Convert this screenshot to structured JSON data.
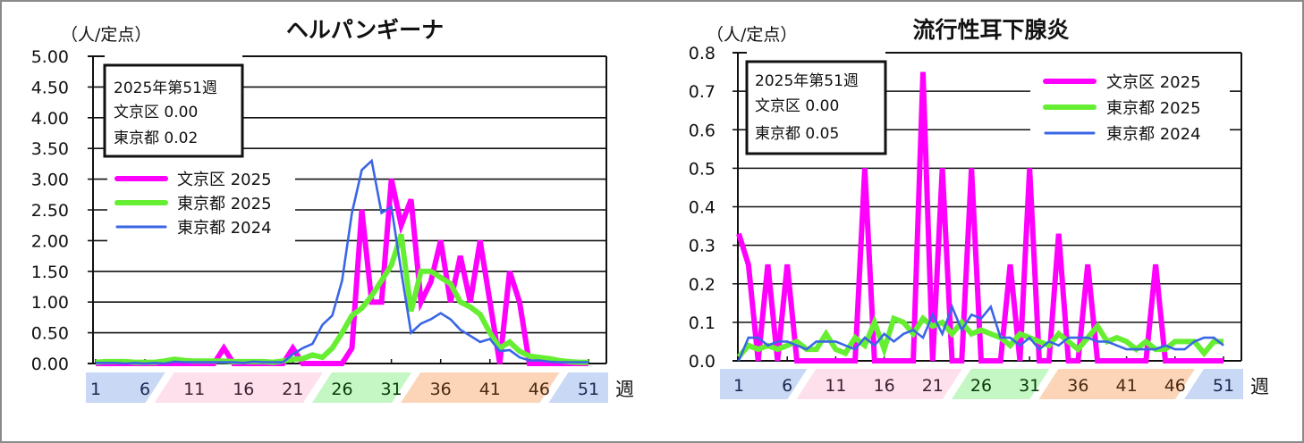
{
  "common": {
    "unit_label": "（人/定点）",
    "week_suffix": "週",
    "x_tick_labels": [
      "1",
      "6",
      "11",
      "16",
      "21",
      "26",
      "31",
      "36",
      "41",
      "46",
      "51"
    ],
    "season_bands": [
      {
        "name": "winter-start",
        "from": 1,
        "to": 7,
        "color": "#c9d8f5",
        "text": "#1a2850"
      },
      {
        "name": "spring",
        "from": 8,
        "to": 23,
        "color": "#fde0ec",
        "text": "#3a2030"
      },
      {
        "name": "summer",
        "from": 24,
        "to": 32,
        "color": "#c4f7c4",
        "text": "#0a3a0a"
      },
      {
        "name": "autumn",
        "from": 33,
        "to": 47,
        "color": "#fcd5b8",
        "text": "#4a2a10"
      },
      {
        "name": "winter-end",
        "from": 48,
        "to": 52,
        "color": "#c9d8f5",
        "text": "#1a2850"
      }
    ],
    "colors": {
      "bunkyo_2025": "#ff00ff",
      "tokyo_2025": "#66ee33",
      "tokyo_2024": "#3a66e6"
    }
  },
  "chart_data": [
    {
      "type": "line",
      "title": "ヘルパンギーナ",
      "ylabel": "（人/定点）",
      "xlabel": "週",
      "ylim": [
        0,
        5
      ],
      "y_ticks": [
        "0.00",
        "0.50",
        "1.00",
        "1.50",
        "2.00",
        "2.50",
        "3.00",
        "3.50",
        "4.00",
        "4.50",
        "5.00"
      ],
      "x_ticks": [
        "1",
        "6",
        "11",
        "16",
        "21",
        "26",
        "31",
        "36",
        "41",
        "46",
        "51"
      ],
      "grid": true,
      "legend_position": "upper-left",
      "info_box": [
        "2025年第51週",
        "文京区  0.00",
        "東京都  0.02"
      ],
      "x": [
        1,
        2,
        3,
        4,
        5,
        6,
        7,
        8,
        9,
        10,
        11,
        12,
        13,
        14,
        15,
        16,
        17,
        18,
        19,
        20,
        21,
        22,
        23,
        24,
        25,
        26,
        27,
        28,
        29,
        30,
        31,
        32,
        33,
        34,
        35,
        36,
        37,
        38,
        39,
        40,
        41,
        42,
        43,
        44,
        45,
        46,
        47,
        48,
        49,
        50,
        51
      ],
      "series": [
        {
          "name": "文京区 2025",
          "values": [
            0,
            0,
            0,
            0,
            0,
            0,
            0,
            0,
            0,
            0,
            0,
            0,
            0,
            0.25,
            0,
            0,
            0,
            0,
            0,
            0,
            0.25,
            0,
            0,
            0,
            0,
            0,
            0.25,
            2.5,
            1.0,
            1.0,
            3.0,
            2.25,
            2.67,
            1.0,
            1.33,
            2.0,
            1.0,
            1.75,
            1.0,
            2.0,
            1.0,
            0,
            1.5,
            1.0,
            0,
            0,
            0,
            0,
            0,
            0,
            0
          ]
        },
        {
          "name": "東京都 2025",
          "values": [
            0.02,
            0.03,
            0.03,
            0.03,
            0.02,
            0.02,
            0.02,
            0.04,
            0.07,
            0.05,
            0.04,
            0.04,
            0.04,
            0.04,
            0.03,
            0.03,
            0.03,
            0.03,
            0.02,
            0.04,
            0.07,
            0.08,
            0.14,
            0.1,
            0.25,
            0.5,
            0.78,
            0.9,
            1.1,
            1.35,
            1.6,
            2.1,
            0.85,
            1.5,
            1.5,
            1.4,
            1.3,
            1.0,
            0.92,
            0.8,
            0.5,
            0.25,
            0.35,
            0.2,
            0.12,
            0.1,
            0.08,
            0.05,
            0.03,
            0.02,
            0.02
          ]
        },
        {
          "name": "東京都 2024",
          "values": [
            0.01,
            0.01,
            0.01,
            0.0,
            0.01,
            0.0,
            0.01,
            0.0,
            0.03,
            0.02,
            0.02,
            0.02,
            0.02,
            0.02,
            0.02,
            0.01,
            0.03,
            0.02,
            0.02,
            0.02,
            0.15,
            0.25,
            0.32,
            0.63,
            0.78,
            1.35,
            2.45,
            3.15,
            3.3,
            2.45,
            2.55,
            1.5,
            0.5,
            0.65,
            0.72,
            0.82,
            0.72,
            0.55,
            0.45,
            0.35,
            0.4,
            0.2,
            0.22,
            0.1,
            0.05,
            0.05,
            0.03,
            0.02,
            0.02,
            0.02,
            0.02
          ]
        }
      ]
    },
    {
      "type": "line",
      "title": "流行性耳下腺炎",
      "ylabel": "（人/定点）",
      "xlabel": "週",
      "ylim": [
        0,
        0.8
      ],
      "y_ticks": [
        "0.0",
        "0.1",
        "0.2",
        "0.3",
        "0.4",
        "0.5",
        "0.6",
        "0.7",
        "0.8"
      ],
      "x_ticks": [
        "1",
        "6",
        "11",
        "16",
        "21",
        "26",
        "31",
        "36",
        "41",
        "46",
        "51"
      ],
      "grid": true,
      "legend_position": "upper-right",
      "info_box": [
        "2025年第51週",
        "文京区  0.00",
        "東京都  0.05"
      ],
      "x": [
        1,
        2,
        3,
        4,
        5,
        6,
        7,
        8,
        9,
        10,
        11,
        12,
        13,
        14,
        15,
        16,
        17,
        18,
        19,
        20,
        21,
        22,
        23,
        24,
        25,
        26,
        27,
        28,
        29,
        30,
        31,
        32,
        33,
        34,
        35,
        36,
        37,
        38,
        39,
        40,
        41,
        42,
        43,
        44,
        45,
        46,
        47,
        48,
        49,
        50,
        51
      ],
      "series": [
        {
          "name": "文京区 2025",
          "values": [
            0.33,
            0.25,
            0,
            0.25,
            0,
            0.25,
            0,
            0,
            0,
            0,
            0,
            0,
            0,
            0.5,
            0,
            0,
            0,
            0,
            0,
            0.75,
            0,
            0.5,
            0,
            0,
            0.5,
            0,
            0,
            0,
            0.25,
            0,
            0.5,
            0,
            0,
            0.33,
            0,
            0,
            0.25,
            0,
            0,
            0,
            0,
            0,
            0,
            0.25,
            0,
            0,
            0,
            0,
            0,
            0,
            0
          ]
        },
        {
          "name": "東京都 2025",
          "values": [
            0.01,
            0.04,
            0.03,
            0.04,
            0.03,
            0.04,
            0.05,
            0.03,
            0.03,
            0.07,
            0.03,
            0.02,
            0.06,
            0.04,
            0.1,
            0.03,
            0.11,
            0.1,
            0.07,
            0.11,
            0.09,
            0.1,
            0.07,
            0.1,
            0.07,
            0.08,
            0.07,
            0.06,
            0.04,
            0.07,
            0.06,
            0.05,
            0.04,
            0.07,
            0.05,
            0.03,
            0.06,
            0.09,
            0.05,
            0.06,
            0.05,
            0.03,
            0.05,
            0.03,
            0.03,
            0.05,
            0.05,
            0.05,
            0.02,
            0.05,
            0.05
          ]
        },
        {
          "name": "東京都 2024",
          "values": [
            0.0,
            0.06,
            0.06,
            0.04,
            0.05,
            0.05,
            0.04,
            0.03,
            0.05,
            0.05,
            0.05,
            0.04,
            0.03,
            0.06,
            0.04,
            0.07,
            0.05,
            0.07,
            0.08,
            0.06,
            0.12,
            0.07,
            0.14,
            0.08,
            0.12,
            0.11,
            0.14,
            0.06,
            0.06,
            0.04,
            0.06,
            0.03,
            0.05,
            0.04,
            0.06,
            0.06,
            0.06,
            0.05,
            0.05,
            0.04,
            0.03,
            0.03,
            0.03,
            0.03,
            0.04,
            0.03,
            0.03,
            0.05,
            0.06,
            0.06,
            0.04
          ]
        }
      ]
    }
  ]
}
